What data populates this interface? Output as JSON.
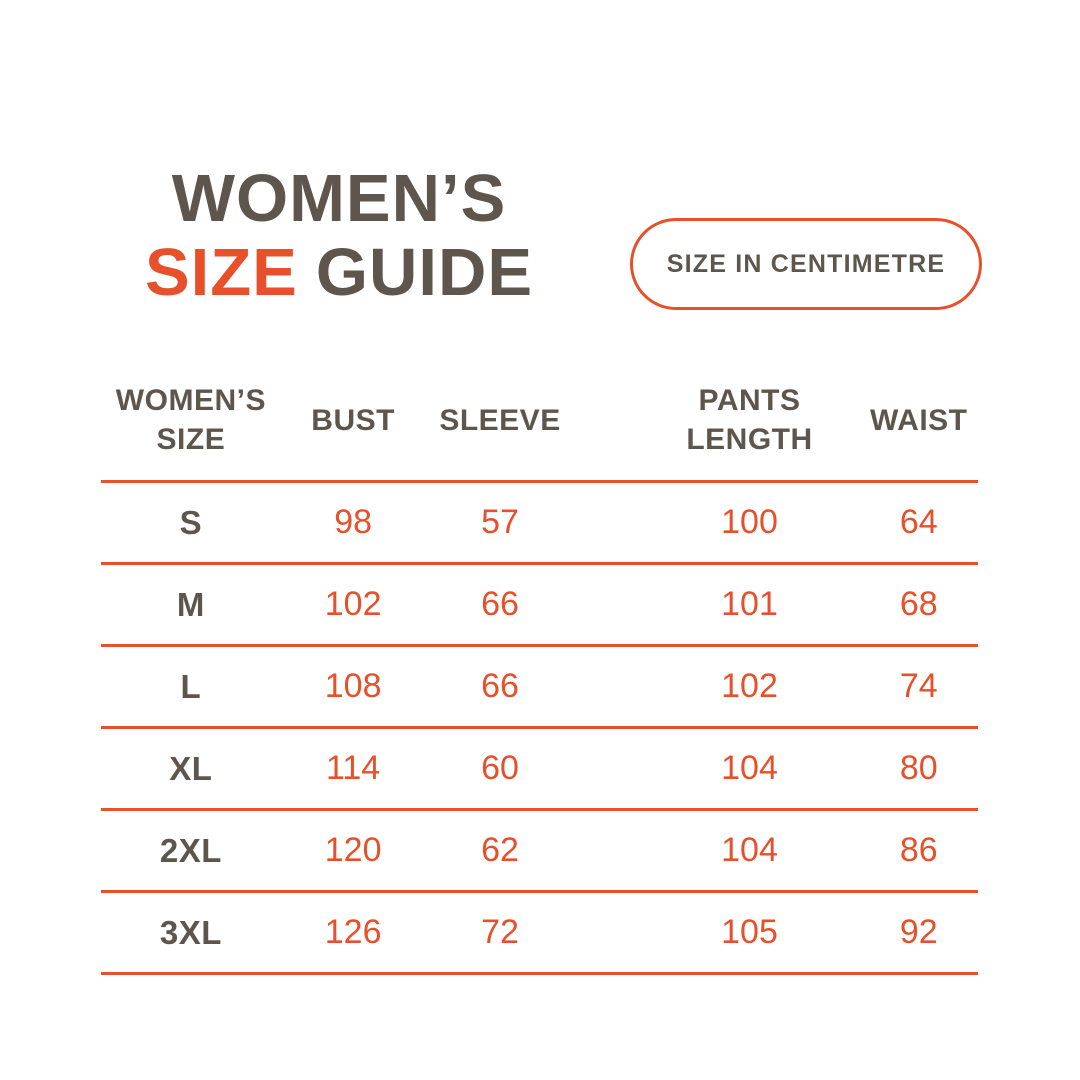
{
  "colors": {
    "accent": "#E7502B",
    "dark": "#5E564C",
    "background": "#FFFFFF"
  },
  "title": {
    "line1": "WOMEN’S",
    "accent_word": "SIZE",
    "rest_word": "GUIDE"
  },
  "badge": {
    "label": "SIZE IN CENTIMETRE"
  },
  "table": {
    "columns": [
      {
        "id": "size",
        "label_lines": [
          "WOMEN’S",
          "SIZE"
        ]
      },
      {
        "id": "bust",
        "label_lines": [
          "BUST"
        ]
      },
      {
        "id": "sleeve",
        "label_lines": [
          "SLEEVE"
        ]
      },
      {
        "id": "pants_length",
        "label_lines": [
          "PANTS",
          "LENGTH"
        ]
      },
      {
        "id": "waist",
        "label_lines": [
          "WAIST"
        ]
      }
    ],
    "rows": [
      {
        "size": "S",
        "bust": "98",
        "sleeve": "57",
        "pants_length": "100",
        "waist": "64"
      },
      {
        "size": "M",
        "bust": "102",
        "sleeve": "66",
        "pants_length": "101",
        "waist": "68"
      },
      {
        "size": "L",
        "bust": "108",
        "sleeve": "66",
        "pants_length": "102",
        "waist": "74"
      },
      {
        "size": "XL",
        "bust": "114",
        "sleeve": "60",
        "pants_length": "104",
        "waist": "80"
      },
      {
        "size": "2XL",
        "bust": "120",
        "sleeve": "62",
        "pants_length": "104",
        "waist": "86"
      },
      {
        "size": "3XL",
        "bust": "126",
        "sleeve": "72",
        "pants_length": "105",
        "waist": "92"
      }
    ]
  }
}
